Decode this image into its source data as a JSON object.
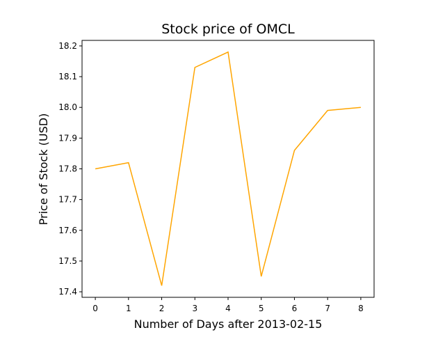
{
  "chart_data": {
    "type": "line",
    "title": "Stock price of OMCL",
    "xlabel": "Number of Days after 2013-02-15",
    "ylabel": "Price of Stock (USD)",
    "x": [
      0,
      1,
      2,
      3,
      4,
      5,
      6,
      7,
      8
    ],
    "series": [
      {
        "values": [
          17.8,
          17.82,
          17.42,
          18.13,
          18.18,
          17.45,
          17.86,
          17.99,
          18.0
        ],
        "color": "#FFA500"
      }
    ],
    "xlim": [
      -0.4,
      8.4
    ],
    "ylim": [
      17.382,
      18.218
    ],
    "xticks": [
      0,
      1,
      2,
      3,
      4,
      5,
      6,
      7,
      8
    ],
    "yticks": [
      17.4,
      17.5,
      17.6,
      17.7,
      17.8,
      17.9,
      18.0,
      18.1,
      18.2
    ],
    "ytick_labels": [
      "17.4",
      "17.5",
      "17.6",
      "17.7",
      "17.8",
      "17.9",
      "18.0",
      "18.1",
      "18.2"
    ],
    "grid": false,
    "legend": "none"
  }
}
